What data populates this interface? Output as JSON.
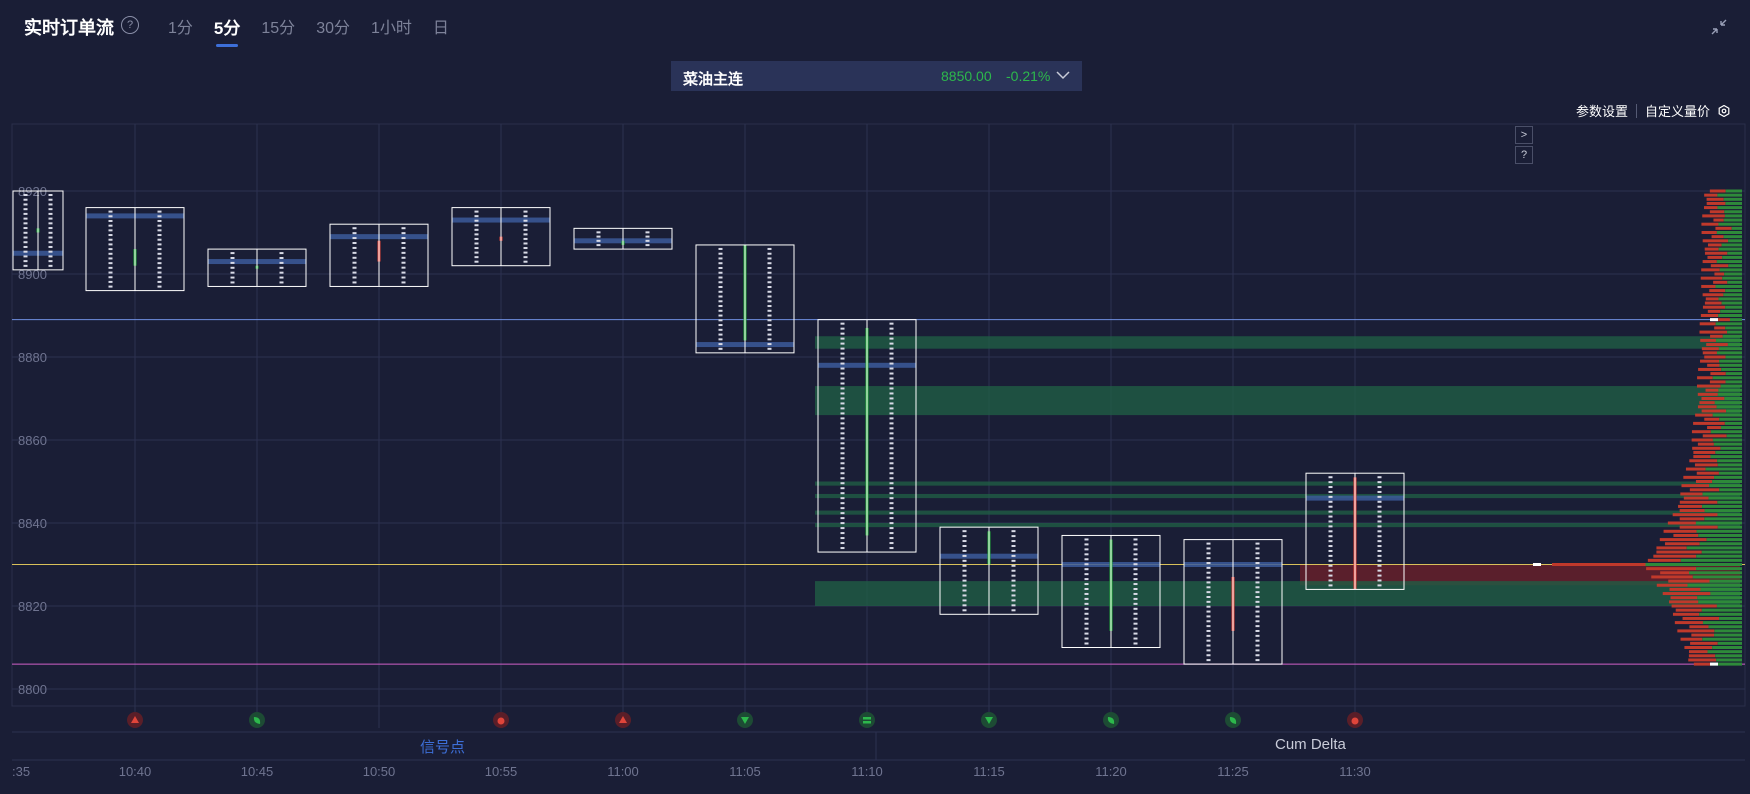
{
  "header": {
    "title": "实时订单流",
    "help": "?",
    "tabs": [
      {
        "label": "1分",
        "active": false
      },
      {
        "label": "5分",
        "active": true
      },
      {
        "label": "15分",
        "active": false
      },
      {
        "label": "30分",
        "active": false
      },
      {
        "label": "1小时",
        "active": false
      },
      {
        "label": "日",
        "active": false
      }
    ]
  },
  "symbol": {
    "name": "菜油主连",
    "price": "8850.00",
    "change": "-0.21%"
  },
  "settings": {
    "params": "参数设置",
    "custom_volume_price": "自定义量价"
  },
  "side_buttons": [
    ">",
    "?"
  ],
  "legend": {
    "signal": "信号点",
    "cum_delta": "Cum Delta"
  },
  "colors": {
    "background": "#1a1e36",
    "up": "#2db84c",
    "down": "#e0453a",
    "accent": "#3d6fd8",
    "line_blue": "#6f8fe0",
    "line_yellow": "#d8c05a",
    "line_magenta": "#d060c8"
  },
  "chart_data": {
    "type": "footprint",
    "x_ticks": [
      ":35",
      "10:40",
      "10:45",
      "10:50",
      "10:55",
      "11:00",
      "11:05",
      "11:10",
      "11:15",
      "11:20",
      "11:25",
      "11:30"
    ],
    "y_ticks": [
      8800,
      8820,
      8840,
      8860,
      8880,
      8900,
      8920
    ],
    "y_tick_labels": [
      "8800",
      "8820",
      "8840",
      "8860",
      "8880",
      "8900",
      "8920"
    ],
    "ylim": [
      8792,
      8930
    ],
    "reference_lines": [
      {
        "price": 8889,
        "color": "#6f8fe0"
      },
      {
        "price": 8830,
        "color": "#d8c05a"
      },
      {
        "price": 8806,
        "color": "#d060c8"
      }
    ],
    "bars": [
      {
        "time": ":35",
        "high": 8920,
        "low": 8901,
        "open": 8910,
        "close": 8911,
        "poc": 8905,
        "dir": "up"
      },
      {
        "time": "10:40",
        "high": 8916,
        "low": 8896,
        "open": 8902,
        "close": 8906,
        "poc": 8914,
        "dir": "up"
      },
      {
        "time": "10:45",
        "high": 8906,
        "low": 8897,
        "open": 8902,
        "close": 8902,
        "poc": 8903,
        "dir": "up"
      },
      {
        "time": "10:50",
        "high": 8912,
        "low": 8897,
        "open": 8908,
        "close": 8903,
        "poc": 8909,
        "dir": "down"
      },
      {
        "time": "10:55",
        "high": 8916,
        "low": 8902,
        "open": 8909,
        "close": 8908,
        "poc": 8913,
        "dir": "down"
      },
      {
        "time": "11:00",
        "high": 8911,
        "low": 8906,
        "open": 8908,
        "close": 8907,
        "poc": 8908,
        "dir": "up"
      },
      {
        "time": "11:05",
        "high": 8907,
        "low": 8881,
        "open": 8907,
        "close": 8884,
        "poc": 8883,
        "dir": "up"
      },
      {
        "time": "11:10",
        "high": 8889,
        "low": 8833,
        "open": 8887,
        "close": 8837,
        "poc": 8878,
        "dir": "up"
      },
      {
        "time": "11:15",
        "high": 8839,
        "low": 8818,
        "open": 8838,
        "close": 8830,
        "poc": 8832,
        "dir": "up"
      },
      {
        "time": "11:20",
        "high": 8837,
        "low": 8810,
        "open": 8836,
        "close": 8814,
        "poc": 8830,
        "dir": "up"
      },
      {
        "time": "11:25",
        "high": 8836,
        "low": 8806,
        "open": 8827,
        "close": 8814,
        "poc": 8830,
        "dir": "down"
      },
      {
        "time": "11:30",
        "high": 8852,
        "low": 8824,
        "open": 8824,
        "close": 8851,
        "poc": 8846,
        "dir": "down"
      }
    ],
    "signals": [
      {
        "time": "10:40",
        "kind": "up",
        "color": "red"
      },
      {
        "time": "10:45",
        "kind": "leaf",
        "color": "green"
      },
      {
        "time": "10:55",
        "kind": "circle",
        "color": "red"
      },
      {
        "time": "11:00",
        "kind": "up",
        "color": "red"
      },
      {
        "time": "11:05",
        "kind": "down",
        "color": "green"
      },
      {
        "time": "11:10",
        "kind": "stack",
        "color": "green"
      },
      {
        "time": "11:15",
        "kind": "down",
        "color": "green"
      },
      {
        "time": "11:20",
        "kind": "leaf",
        "color": "green"
      },
      {
        "time": "11:25",
        "kind": "leaf",
        "color": "green"
      },
      {
        "time": "11:30",
        "kind": "circle",
        "color": "red"
      }
    ],
    "imbalance_zones": [
      {
        "from": 8882,
        "to": 8885,
        "color": "green"
      },
      {
        "from": 8870,
        "to": 8873,
        "color": "green"
      },
      {
        "from": 8866,
        "to": 8870,
        "color": "green"
      },
      {
        "from": 8849,
        "to": 8850,
        "color": "green"
      },
      {
        "from": 8846,
        "to": 8847,
        "color": "green"
      },
      {
        "from": 8842,
        "to": 8843,
        "color": "green"
      },
      {
        "from": 8839,
        "to": 8840,
        "color": "green"
      },
      {
        "from": 8825,
        "to": 8830,
        "color": "red"
      },
      {
        "from": 8820,
        "to": 8826,
        "color": "green"
      }
    ],
    "volume_profile": {
      "high_price": 8920,
      "low_price": 8806,
      "peak_price": 8830
    }
  }
}
